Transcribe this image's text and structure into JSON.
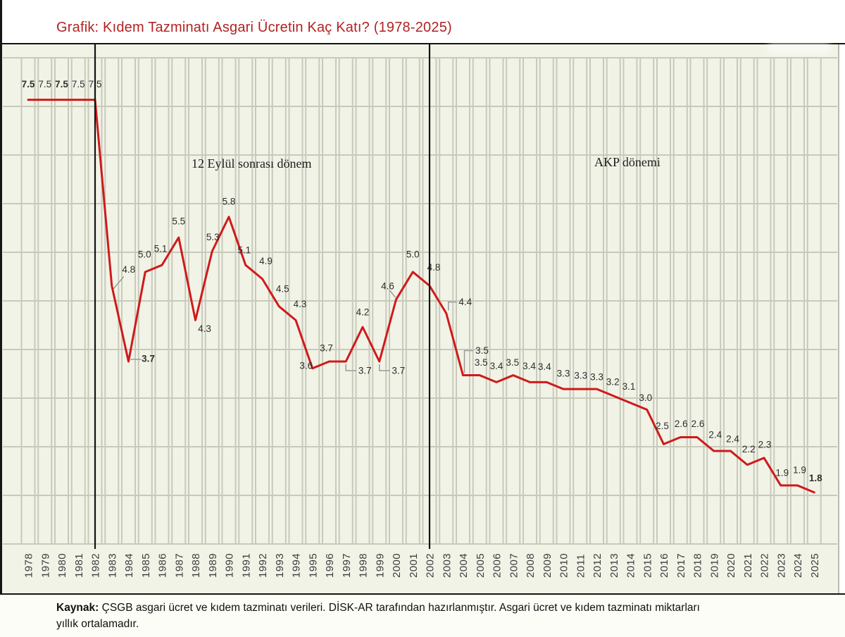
{
  "title": "Grafik: Kıdem Tazminatı Asgari Ücretin Kaç Katı? (1978-2025)",
  "annotations": {
    "period1": "12 Eylül sonrası dönem",
    "period2": "AKP dönemi"
  },
  "footer": {
    "label": "Kaynak:",
    "line1": " ÇSGB asgari ücret ve kıdem tazminatı verileri. DİSK-AR tarafından hazırlanmıştır. Asgari ücret ve kıdem tazminatı miktarları",
    "line2": "yıllık ortalamadır."
  },
  "colors": {
    "title": "#b22222",
    "line": "#cf1a1a",
    "grid": "#c7cabb",
    "marker_line": "#141414",
    "label": "#2e2e2e",
    "leader": "#9a9a9a",
    "chart_bg": "#f2f3e7"
  },
  "chart_data": {
    "type": "line",
    "title": "Grafik: Kıdem Tazminatı Asgari Ücretin Kaç Katı? (1978-2025)",
    "xlabel": "",
    "ylabel": "",
    "x": [
      1978,
      1979,
      1980,
      1981,
      1982,
      1983,
      1984,
      1985,
      1986,
      1987,
      1988,
      1989,
      1990,
      1991,
      1992,
      1993,
      1994,
      1995,
      1996,
      1997,
      1998,
      1999,
      2000,
      2001,
      2002,
      2003,
      2004,
      2005,
      2006,
      2007,
      2008,
      2009,
      2010,
      2011,
      2012,
      2013,
      2014,
      2015,
      2016,
      2017,
      2018,
      2019,
      2020,
      2021,
      2022,
      2023,
      2024,
      2025
    ],
    "values": [
      7.5,
      7.5,
      7.5,
      7.5,
      7.5,
      4.8,
      3.7,
      5.0,
      5.1,
      5.5,
      4.3,
      5.3,
      5.8,
      5.1,
      4.9,
      4.5,
      4.3,
      3.6,
      3.7,
      3.7,
      4.2,
      3.7,
      4.6,
      5.0,
      4.8,
      4.4,
      3.5,
      3.5,
      3.4,
      3.5,
      3.4,
      3.4,
      3.3,
      3.3,
      3.3,
      3.2,
      3.1,
      3.0,
      2.5,
      2.6,
      2.6,
      2.4,
      2.4,
      2.2,
      2.3,
      1.9,
      1.9,
      1.8
    ],
    "ylim": [
      1.05,
      8.11
    ],
    "grid": "on",
    "gridline_rows": 10,
    "marker_years": [
      1982,
      2002
    ],
    "bold_label_years": [
      1978,
      1980,
      1984,
      2025
    ],
    "label_offsets": {
      "1978": [
        0,
        -22
      ],
      "1979": [
        0,
        -22
      ],
      "1980": [
        0,
        -22
      ],
      "1981": [
        0,
        -22
      ],
      "1982": [
        0,
        -22
      ],
      "1983": [
        24,
        -23
      ],
      "1984": [
        28,
        -4
      ],
      "1985": [
        -1,
        -25
      ],
      "1986": [
        -2,
        -23
      ],
      "1987": [
        0,
        -23
      ],
      "1988": [
        13,
        12
      ],
      "1989": [
        1,
        -20
      ],
      "1990": [
        0,
        -22
      ],
      "1991": [
        -2,
        -21
      ],
      "1992": [
        5,
        -25
      ],
      "1993": [
        5,
        -25
      ],
      "1994": [
        6,
        -23
      ],
      "1995": [
        -9,
        -4
      ],
      "1996": [
        -4,
        -19
      ],
      "1997": [
        27,
        13
      ],
      "1998": [
        0,
        -21
      ],
      "1999": [
        27,
        13
      ],
      "2000": [
        -12,
        -19
      ],
      "2001": [
        0,
        -25
      ],
      "2002": [
        6,
        -26
      ],
      "2003": [
        27,
        -16
      ],
      "2004": [
        27,
        -35
      ],
      "2005": [
        2,
        -18
      ],
      "2006": [
        0,
        -23
      ],
      "2007": [
        -1,
        -18
      ],
      "2008": [
        -1,
        -23
      ],
      "2009": [
        -3,
        -22
      ],
      "2010": [
        0,
        -22
      ],
      "2011": [
        1,
        -19
      ],
      "2012": [
        0,
        -17
      ],
      "2013": [
        -1,
        -20
      ],
      "2014": [
        -2,
        -23
      ],
      "2015": [
        -2,
        -17
      ],
      "2016": [
        -2,
        -26
      ],
      "2017": [
        1,
        -19
      ],
      "2018": [
        1,
        -19
      ],
      "2019": [
        2,
        -23
      ],
      "2020": [
        3,
        -17
      ],
      "2021": [
        2,
        -22
      ],
      "2022": [
        1,
        -19
      ],
      "2023": [
        2,
        -18
      ],
      "2024": [
        3,
        -22
      ],
      "2025": [
        2,
        -20
      ]
    },
    "leaders": {
      "1983": [
        [
          1,
          6
        ],
        [
          17,
          -13
        ]
      ],
      "1984": [
        [
          3,
          -3
        ],
        [
          18,
          -3
        ]
      ],
      "1997": [
        [
          0,
          4
        ],
        [
          0,
          13
        ],
        [
          15,
          13
        ]
      ],
      "1999": [
        [
          0,
          4
        ],
        [
          0,
          13
        ],
        [
          15,
          13
        ]
      ],
      "2000": [
        [
          -9,
          -13
        ],
        [
          -1,
          -3
        ]
      ],
      "2003": [
        [
          3,
          -4
        ],
        [
          3,
          -16
        ],
        [
          15,
          -16
        ]
      ],
      "2004": [
        [
          2,
          -3
        ],
        [
          2,
          -35
        ],
        [
          15,
          -35
        ]
      ]
    }
  }
}
